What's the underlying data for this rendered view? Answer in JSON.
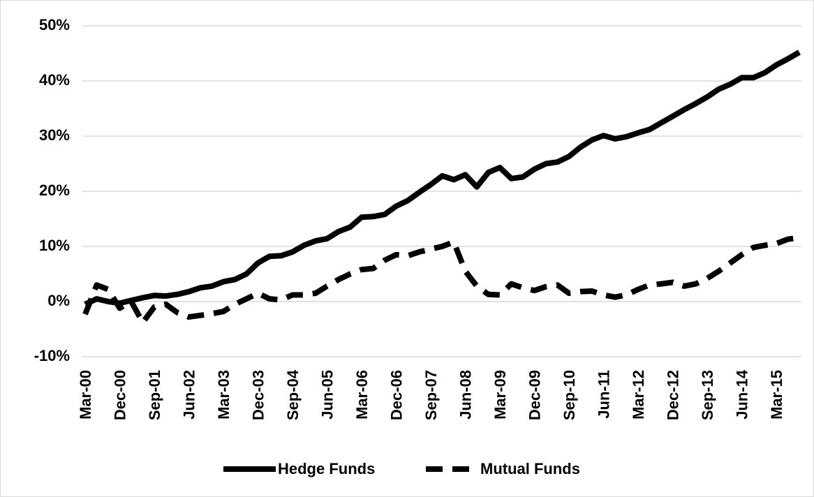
{
  "chart_data": {
    "type": "line",
    "categories": [
      "Mar-00",
      null,
      null,
      "Dec-00",
      null,
      null,
      "Sep-01",
      null,
      null,
      "Jun-02",
      null,
      null,
      "Mar-03",
      null,
      null,
      "Dec-03",
      null,
      null,
      "Sep-04",
      null,
      null,
      "Jun-05",
      null,
      null,
      "Mar-06",
      null,
      null,
      "Dec-06",
      null,
      null,
      "Sep-07",
      null,
      null,
      "Jun-08",
      null,
      null,
      "Mar-09",
      null,
      null,
      "Dec-09",
      null,
      null,
      "Sep-10",
      null,
      null,
      "Jun-11",
      null,
      null,
      "Mar-12",
      null,
      null,
      "Dec-12",
      null,
      null,
      "Sep-13",
      null,
      null,
      "Jun-14",
      null,
      null,
      "Mar-15",
      null,
      null
    ],
    "series": [
      {
        "name": "Hedge Funds",
        "color": "#000000",
        "dash": false,
        "values": [
          -0.5,
          0.5,
          0,
          -0.3,
          0.2,
          0.7,
          1.1,
          1,
          1.3,
          1.8,
          2.5,
          2.8,
          3.6,
          4,
          5,
          7,
          8.2,
          8.3,
          9,
          10.2,
          11,
          11.4,
          12.7,
          13.5,
          15.3,
          15.4,
          15.8,
          17.3,
          18.3,
          19.8,
          21.2,
          22.8,
          22.1,
          23,
          20.8,
          23.4,
          24.3,
          22.3,
          22.6,
          24,
          25,
          25.3,
          26.3,
          28,
          29.3,
          30.1,
          29.5,
          29.9,
          30.6,
          31.2,
          32.4,
          33.6,
          34.8,
          35.9,
          37.1,
          38.5,
          39.4,
          40.6,
          40.6,
          41.5,
          42.9,
          44,
          45.2
        ]
      },
      {
        "name": "Mutual Funds",
        "color": "#000000",
        "dash": true,
        "values": [
          -2.3,
          3,
          2.2,
          -1.2,
          0,
          -3.8,
          -1,
          -0.5,
          -2,
          -2.8,
          -2.5,
          -2.2,
          -1.8,
          -0.5,
          0.5,
          1.5,
          0.5,
          0.3,
          1.2,
          1.2,
          1.5,
          2.8,
          4,
          5,
          5.8,
          6,
          7.5,
          8.5,
          8.3,
          9,
          9.5,
          10,
          10.8,
          5.5,
          2.8,
          1.3,
          1.2,
          3.2,
          2.5,
          2,
          2.7,
          3,
          1.5,
          1.8,
          1.9,
          1.2,
          0.8,
          1.2,
          2.2,
          3,
          3.2,
          3.5,
          2.8,
          3.2,
          4.2,
          5.5,
          7,
          8.5,
          9.8,
          10.2,
          10.5,
          11.3,
          11.6
        ]
      }
    ],
    "ylim": [
      -10,
      50
    ],
    "yticks": [
      {
        "value": -10,
        "label": "-10%"
      },
      {
        "value": 0,
        "label": "0%"
      },
      {
        "value": 10,
        "label": "10%"
      },
      {
        "value": 20,
        "label": "20%"
      },
      {
        "value": 30,
        "label": "30%"
      },
      {
        "value": 40,
        "label": "40%"
      },
      {
        "value": 50,
        "label": "50%"
      }
    ],
    "grid": true,
    "legend": "bottom"
  }
}
